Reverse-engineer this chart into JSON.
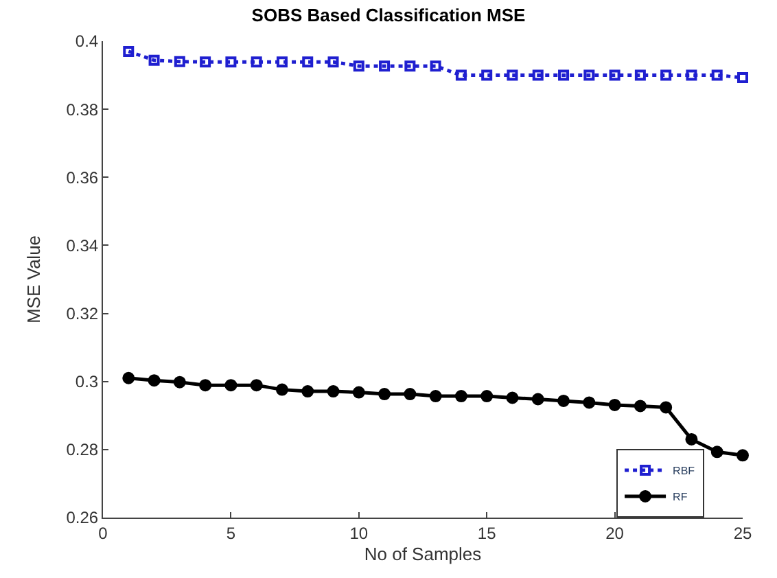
{
  "chart_data": {
    "type": "line",
    "title": "SOBS Based Classification MSE",
    "xlabel": "No of Samples",
    "ylabel": "MSE Value",
    "x": [
      1,
      2,
      3,
      4,
      5,
      6,
      7,
      8,
      9,
      10,
      11,
      12,
      13,
      14,
      15,
      16,
      17,
      18,
      19,
      20,
      21,
      22,
      23,
      24,
      25
    ],
    "series": [
      {
        "name": "RBF",
        "color": "#1f1fd0",
        "marker": "square",
        "line_style": "dotted",
        "values": [
          0.397,
          0.3944,
          0.394,
          0.3939,
          0.3939,
          0.3939,
          0.3939,
          0.3939,
          0.3939,
          0.3927,
          0.3927,
          0.3927,
          0.3927,
          0.39,
          0.39,
          0.39,
          0.39,
          0.39,
          0.39,
          0.39,
          0.39,
          0.39,
          0.39,
          0.39,
          0.3893
        ]
      },
      {
        "name": "RF",
        "color": "#000000",
        "marker": "circle",
        "line_style": "solid",
        "values": [
          0.301,
          0.3003,
          0.2998,
          0.2989,
          0.2989,
          0.2989,
          0.2976,
          0.2971,
          0.2971,
          0.2968,
          0.2963,
          0.2963,
          0.2957,
          0.2957,
          0.2957,
          0.2952,
          0.2948,
          0.2943,
          0.2938,
          0.2931,
          0.2928,
          0.2924,
          0.283,
          0.2793,
          0.2783
        ]
      }
    ],
    "xlim": [
      0,
      25
    ],
    "xticks": [
      0,
      5,
      10,
      15,
      20,
      25
    ],
    "ylim": [
      0.26,
      0.4
    ],
    "yticks": [
      0.26,
      0.28,
      0.3,
      0.32,
      0.34,
      0.36,
      0.38,
      0.4
    ],
    "legend": "bottom right"
  }
}
